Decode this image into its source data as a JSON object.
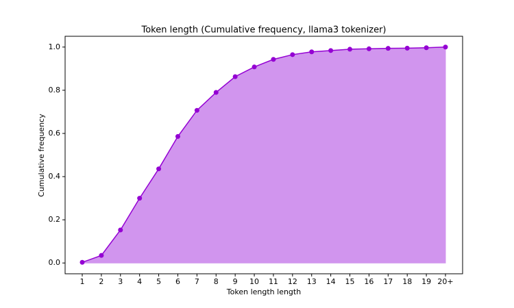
{
  "chart_data": {
    "type": "line",
    "title": "Token length (Cumulative frequency, llama3 tokenizer)",
    "x_label": "Token length length",
    "y_label": "Cumulative frequency",
    "categories": [
      "1",
      "2",
      "3",
      "4",
      "5",
      "6",
      "7",
      "8",
      "9",
      "10",
      "11",
      "12",
      "13",
      "14",
      "15",
      "16",
      "17",
      "18",
      "19",
      "20+"
    ],
    "values": [
      0.003,
      0.035,
      0.153,
      0.3,
      0.436,
      0.586,
      0.707,
      0.79,
      0.863,
      0.908,
      0.943,
      0.965,
      0.978,
      0.984,
      0.99,
      0.992,
      0.994,
      0.995,
      0.997,
      1.0
    ],
    "color": "#9400d3",
    "fill_color": "#d195ee",
    "fill": true,
    "markers": true,
    "ylim": [
      -0.05,
      1.05
    ],
    "yticks": [
      {
        "value": 0,
        "label": "0.0"
      },
      {
        "value": 0.2,
        "label": "0.2"
      },
      {
        "value": 0.4,
        "label": "0.4"
      },
      {
        "value": 0.6,
        "label": "0.6"
      },
      {
        "value": 0.8,
        "label": "0.8"
      },
      {
        "value": 1,
        "label": "1.0"
      }
    ],
    "grid": false
  }
}
